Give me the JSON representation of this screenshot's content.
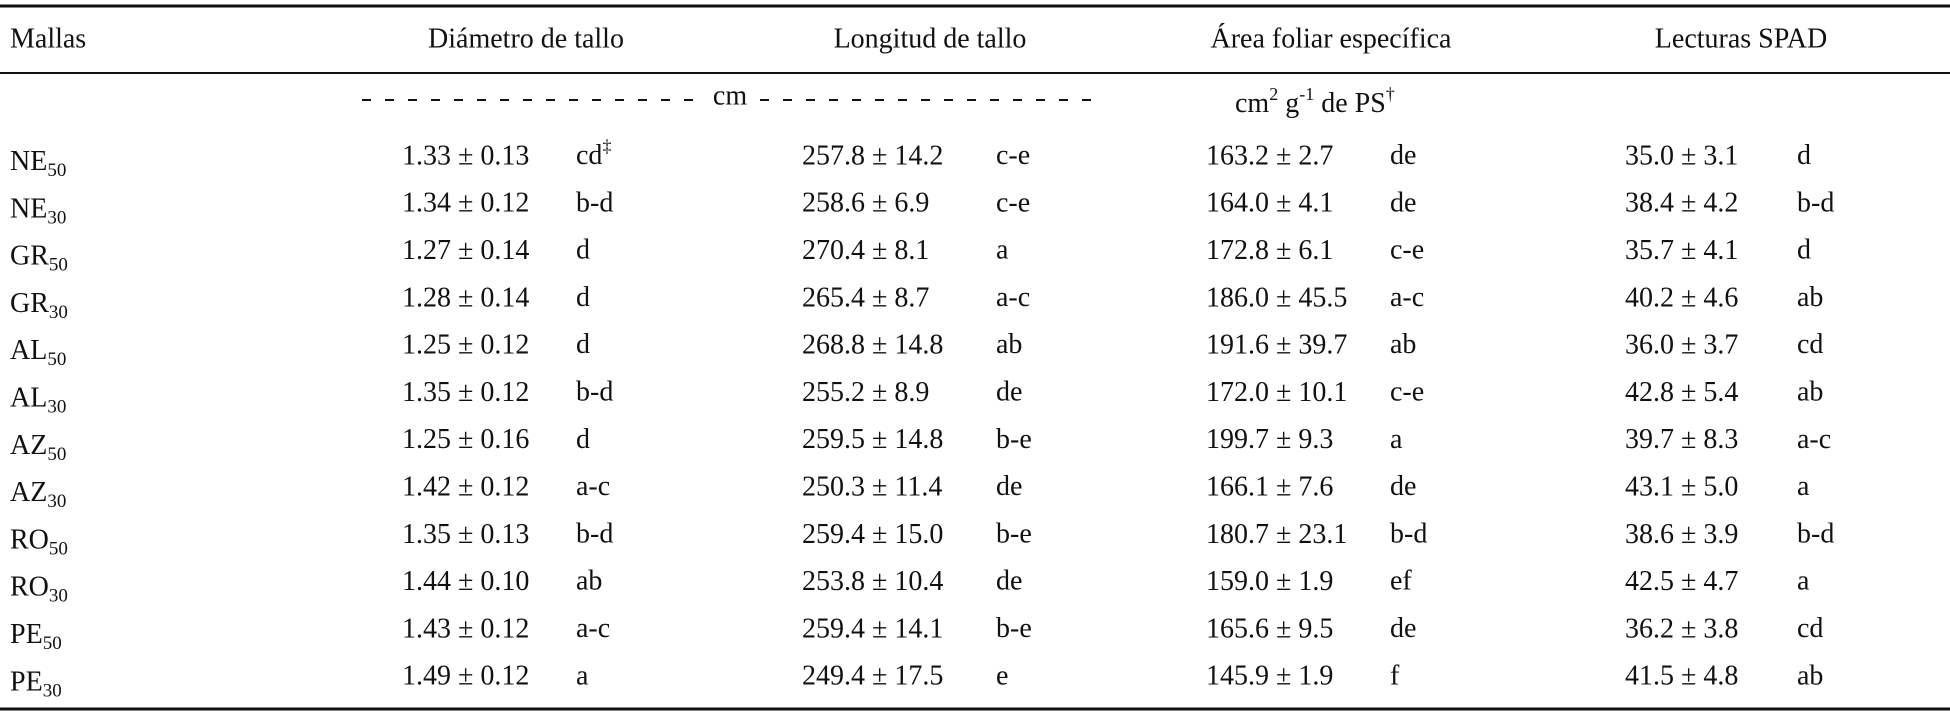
{
  "table": {
    "headers": [
      "Mallas",
      "Diámetro de tallo",
      "Longitud de tallo",
      "Área foliar específica",
      "Lecturas SPAD"
    ],
    "units": {
      "length": "cm",
      "area": [
        {
          "text": "cm",
          "sup": "2"
        },
        {
          "text": " g",
          "sup": "-1"
        },
        {
          "text": " de PS",
          "sup": "†"
        }
      ]
    },
    "rows": [
      {
        "label": "NE",
        "sub": "50",
        "cells": [
          {
            "value": "1.33 ± 0.13",
            "group": "cd",
            "note": "‡"
          },
          {
            "value": "257.8 ± 14.2",
            "group": "c-e"
          },
          {
            "value": "163.2 ± 2.7",
            "group": "de"
          },
          {
            "value": "35.0 ± 3.1",
            "group": "d"
          }
        ]
      },
      {
        "label": "NE",
        "sub": "30",
        "cells": [
          {
            "value": "1.34 ± 0.12",
            "group": "b-d"
          },
          {
            "value": "258.6 ± 6.9",
            "group": "c-e"
          },
          {
            "value": "164.0 ± 4.1",
            "group": "de"
          },
          {
            "value": "38.4 ± 4.2",
            "group": "b-d"
          }
        ]
      },
      {
        "label": "GR",
        "sub": "50",
        "cells": [
          {
            "value": "1.27 ± 0.14",
            "group": "d"
          },
          {
            "value": "270.4 ± 8.1",
            "group": "a"
          },
          {
            "value": "172.8 ± 6.1",
            "group": "c-e"
          },
          {
            "value": "35.7 ± 4.1",
            "group": "d"
          }
        ]
      },
      {
        "label": "GR",
        "sub": "30",
        "cells": [
          {
            "value": "1.28 ± 0.14",
            "group": "d"
          },
          {
            "value": "265.4 ± 8.7",
            "group": "a-c"
          },
          {
            "value": "186.0 ± 45.5",
            "group": "a-c"
          },
          {
            "value": "40.2 ± 4.6",
            "group": "ab"
          }
        ]
      },
      {
        "label": "AL",
        "sub": "50",
        "cells": [
          {
            "value": "1.25 ± 0.12",
            "group": "d"
          },
          {
            "value": "268.8 ± 14.8",
            "group": "ab"
          },
          {
            "value": "191.6 ± 39.7",
            "group": "ab"
          },
          {
            "value": "36.0 ± 3.7",
            "group": "cd"
          }
        ]
      },
      {
        "label": "AL",
        "sub": "30",
        "cells": [
          {
            "value": "1.35 ± 0.12",
            "group": "b-d"
          },
          {
            "value": "255.2 ± 8.9",
            "group": "de"
          },
          {
            "value": "172.0 ± 10.1",
            "group": "c-e"
          },
          {
            "value": "42.8 ± 5.4",
            "group": "ab"
          }
        ]
      },
      {
        "label": "AZ",
        "sub": "50",
        "cells": [
          {
            "value": "1.25 ± 0.16",
            "group": "d"
          },
          {
            "value": "259.5 ± 14.8",
            "group": "b-e"
          },
          {
            "value": "199.7 ± 9.3",
            "group": "a"
          },
          {
            "value": "39.7 ± 8.3",
            "group": "a-c"
          }
        ]
      },
      {
        "label": "AZ",
        "sub": "30",
        "cells": [
          {
            "value": "1.42 ± 0.12",
            "group": "a-c"
          },
          {
            "value": "250.3 ± 11.4",
            "group": "de"
          },
          {
            "value": "166.1 ± 7.6",
            "group": "de"
          },
          {
            "value": "43.1 ± 5.0",
            "group": "a"
          }
        ]
      },
      {
        "label": "RO",
        "sub": "50",
        "cells": [
          {
            "value": "1.35 ± 0.13",
            "group": "b-d"
          },
          {
            "value": "259.4 ± 15.0",
            "group": "b-e"
          },
          {
            "value": "180.7 ± 23.1",
            "group": "b-d"
          },
          {
            "value": "38.6 ± 3.9",
            "group": "b-d"
          }
        ]
      },
      {
        "label": "RO",
        "sub": "30",
        "cells": [
          {
            "value": "1.44 ± 0.10",
            "group": "ab"
          },
          {
            "value": "253.8 ± 10.4",
            "group": "de"
          },
          {
            "value": "159.0 ± 1.9",
            "group": "ef"
          },
          {
            "value": "42.5 ± 4.7",
            "group": "a"
          }
        ]
      },
      {
        "label": "PE",
        "sub": "50",
        "cells": [
          {
            "value": "1.43 ± 0.12",
            "group": "a-c"
          },
          {
            "value": "259.4 ± 14.1",
            "group": "b-e"
          },
          {
            "value": "165.6 ± 9.5",
            "group": "de"
          },
          {
            "value": "36.2 ± 3.8",
            "group": "cd"
          }
        ]
      },
      {
        "label": "PE",
        "sub": "30",
        "cells": [
          {
            "value": "1.49 ± 0.12",
            "group": "a"
          },
          {
            "value": "249.4 ± 17.5",
            "group": "e"
          },
          {
            "value": "145.9 ± 1.9",
            "group": "f"
          },
          {
            "value": "41.5 ± 4.8",
            "group": "ab"
          }
        ]
      }
    ]
  }
}
